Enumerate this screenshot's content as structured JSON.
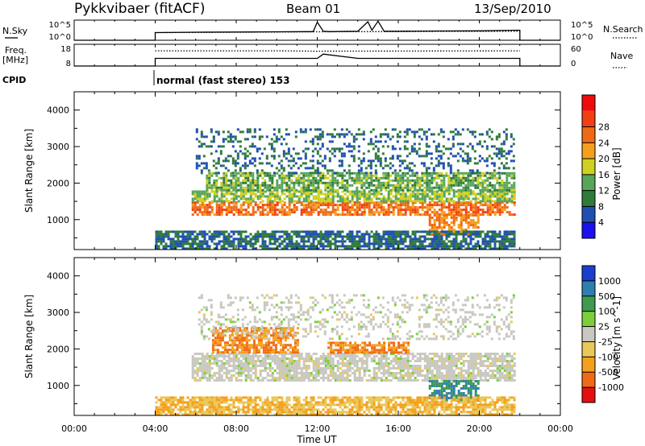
{
  "header": {
    "title": "Pykkvibaer (fitACF)",
    "beam": "Beam 01",
    "date": "13/Sep/2010"
  },
  "left_labels": {
    "nsky": "N.Sky",
    "freq_line1": "Freq.",
    "freq_line2": "[MHz]",
    "cpid": "CPID"
  },
  "right_labels": {
    "nsearch": "N.Search",
    "nave": "Nave"
  },
  "nsky_panel": {
    "left_ticks": [
      "10^5",
      "10^0"
    ],
    "right_ticks": [
      "10^5",
      "10^0"
    ]
  },
  "freq_panel": {
    "left_ticks": [
      "18",
      "8"
    ],
    "right_ticks": [
      "60",
      "0"
    ]
  },
  "cpid_text": "normal (fast stereo) 153",
  "chart_data": [
    {
      "type": "line",
      "panel": "noise",
      "title": "",
      "x_unit": "Time UT (hours)",
      "xlim": [
        0,
        24
      ],
      "series": [
        {
          "name": "N.Sky",
          "style": "solid",
          "x": [
            0,
            4,
            4,
            6,
            8,
            10,
            11.8,
            12,
            12.3,
            12.6,
            14,
            14.5,
            14.7,
            15,
            15.3,
            16,
            18,
            20,
            22,
            22,
            24
          ],
          "y_fraction": [
            0,
            0,
            0.38,
            0.4,
            0.41,
            0.42,
            0.43,
            0.9,
            0.45,
            0.43,
            0.45,
            0.92,
            0.5,
            0.95,
            0.45,
            0.45,
            0.46,
            0.47,
            0.5,
            0,
            0
          ]
        },
        {
          "name": "N.Search",
          "style": "dotted",
          "x": [
            4,
            6,
            8,
            10,
            12,
            14,
            16,
            18,
            20,
            22
          ],
          "y_fraction": [
            0.38,
            0.39,
            0.4,
            0.41,
            0.42,
            0.43,
            0.43,
            0.44,
            0.44,
            0.45
          ]
        }
      ]
    },
    {
      "type": "line",
      "panel": "frequency",
      "title": "",
      "x_unit": "Time UT (hours)",
      "xlim": [
        0,
        24
      ],
      "series": [
        {
          "name": "Freq.",
          "style": "solid",
          "x": [
            0,
            4,
            4,
            10,
            12,
            12.3,
            14,
            22,
            22,
            24
          ],
          "y_fraction": [
            0,
            0,
            0.35,
            0.35,
            0.35,
            0.55,
            0.35,
            0.35,
            0,
            0
          ]
        },
        {
          "name": "Nave",
          "style": "dotted",
          "x": [
            4,
            10,
            12,
            22
          ],
          "y_fraction": [
            0.7,
            0.7,
            0.68,
            0.7
          ]
        }
      ]
    },
    {
      "type": "heatmap",
      "panel": "power",
      "xlabel": "",
      "ylabel": "Slant Range [km]",
      "xlim": [
        0,
        24
      ],
      "ylim": [
        180,
        4500
      ],
      "yticks": [
        1000,
        2000,
        3000,
        4000
      ],
      "colorbar": {
        "label": "Power [dB]",
        "ticks": [
          28,
          24,
          20,
          16,
          12,
          8,
          4
        ],
        "colors": [
          "#1a10f0",
          "#1f4fb0",
          "#2e7b3a",
          "#57a55a",
          "#cfd021",
          "#f5a01c",
          "#f06a15",
          "#f23e12",
          "#f00b0b"
        ]
      },
      "data_extent": {
        "x_start": 4.0,
        "x_end": 22.0
      },
      "features": [
        {
          "x_range": [
            5.8,
            21.7
          ],
          "range_km": [
            1150,
            1500
          ],
          "value_db": 26
        },
        {
          "x_range": [
            5.8,
            21.7
          ],
          "range_km": [
            1500,
            1800
          ],
          "value_db": 16
        },
        {
          "x_range": [
            6.5,
            21.7
          ],
          "range_km": [
            1800,
            2300
          ],
          "value_db": 14
        },
        {
          "x_range": [
            17.5,
            20.0
          ],
          "range_km": [
            600,
            1150
          ],
          "value_db": 24
        },
        {
          "x_range": [
            4.0,
            21.7
          ],
          "range_km": [
            180,
            700
          ],
          "value_db": 8
        },
        {
          "x_range": [
            6.0,
            21.7
          ],
          "range_km": [
            2300,
            3500
          ],
          "value_db": 8
        }
      ]
    },
    {
      "type": "heatmap",
      "panel": "velocity",
      "xlabel": "Time UT",
      "ylabel": "Slant Range [km]",
      "xlim": [
        0,
        24
      ],
      "ylim": [
        180,
        4500
      ],
      "yticks": [
        1000,
        2000,
        3000,
        4000
      ],
      "xticks": [
        "00:00",
        "04:00",
        "08:00",
        "12:00",
        "16:00",
        "20:00",
        "00:00"
      ],
      "colorbar": {
        "label": "Velocity [m s^-1]",
        "ticks": [
          1000,
          500,
          100,
          25,
          -25,
          -100,
          -500,
          -1000
        ],
        "colors": [
          "#1a3fcf",
          "#2e7fb0",
          "#3f9a4f",
          "#7ccf3b",
          "#c8c8c0",
          "#e8c85a",
          "#f5a01c",
          "#f06a15",
          "#e41010"
        ]
      },
      "data_extent": {
        "x_start": 4.0,
        "x_end": 22.0
      },
      "features": [
        {
          "x_range": [
            5.8,
            21.7
          ],
          "range_km": [
            1150,
            1900
          ],
          "value_ms": 0
        },
        {
          "x_range": [
            6.8,
            11.0
          ],
          "range_km": [
            1900,
            2600
          ],
          "value_ms": -500
        },
        {
          "x_range": [
            12.5,
            16.5
          ],
          "range_km": [
            1900,
            2200
          ],
          "value_ms": -500
        },
        {
          "x_range": [
            17.5,
            20.0
          ],
          "range_km": [
            600,
            1150
          ],
          "value_ms": 500
        },
        {
          "x_range": [
            6.0,
            21.7
          ],
          "range_km": [
            2300,
            3500
          ],
          "value_ms": 0
        },
        {
          "x_range": [
            4.0,
            21.7
          ],
          "range_km": [
            180,
            700
          ],
          "value_ms": -100
        }
      ]
    }
  ]
}
